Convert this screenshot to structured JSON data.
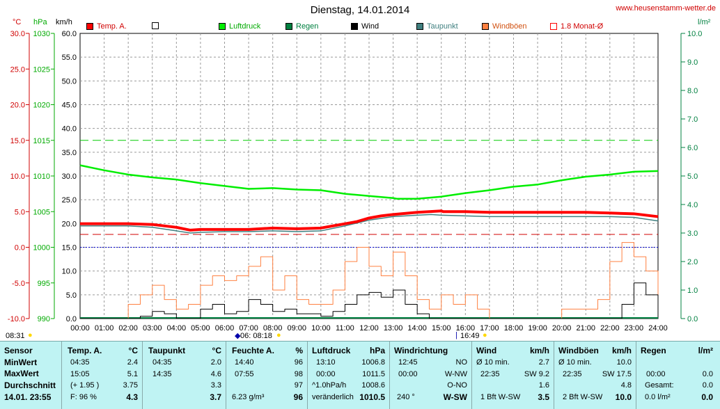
{
  "header": {
    "title": "Dienstag, 14.01.2014",
    "site": "www.heusenstamm-wetter.de",
    "unit_temp": "°C",
    "unit_press": "hPa",
    "unit_wind": "km/h",
    "unit_rain": "l/m²"
  },
  "legend": [
    {
      "label": "Temp. A.",
      "color": "#ff0000",
      "filled": true
    },
    {
      "label": "",
      "color": "#ffffff",
      "filled": false
    },
    {
      "label": "Luftdruck",
      "color": "#00ee00",
      "filled": true
    },
    {
      "label": "Regen",
      "color": "#008040",
      "filled": true
    },
    {
      "label": "Wind",
      "color": "#000000",
      "filled": true
    },
    {
      "label": "Taupunkt",
      "color": "#408080",
      "filled": true
    },
    {
      "label": "Windböen",
      "color": "#ff8040",
      "filled": true
    },
    {
      "label": "1.8 Monat-Ø",
      "color": "#ff0000",
      "filled": false
    }
  ],
  "sun": {
    "rise_label": "08:31",
    "mid_label": "06: 08:18",
    "set_label": "16:49"
  },
  "chart_data": {
    "type": "line",
    "title": "Dienstag, 14.01.2014",
    "x_ticks": [
      "00:00",
      "01:00",
      "02:00",
      "03:00",
      "04:00",
      "05:00",
      "06:00",
      "07:00",
      "08:00",
      "09:00",
      "10:00",
      "11:00",
      "12:00",
      "13:00",
      "14:00",
      "15:00",
      "16:00",
      "17:00",
      "18:00",
      "19:00",
      "20:00",
      "21:00",
      "22:00",
      "23:00",
      "24:00"
    ],
    "axes": {
      "temp": {
        "unit": "°C",
        "ticks": [
          "30.0",
          "25.0",
          "20.0",
          "15.0",
          "10.0",
          "5.0",
          "0.0",
          "-5.0",
          "-10.0"
        ],
        "range": [
          -10,
          30
        ]
      },
      "pressure": {
        "unit": "hPa",
        "ticks": [
          "1030",
          "1025",
          "1020",
          "1015",
          "1010",
          "1005",
          "1000",
          "995",
          "990"
        ],
        "range": [
          990,
          1030
        ]
      },
      "wind": {
        "unit": "km/h",
        "ticks": [
          "60.0",
          "55.0",
          "50.0",
          "45.0",
          "40.0",
          "35.0",
          "30.0",
          "25.0",
          "20.0",
          "15.0",
          "10.0",
          "5.0",
          "0.0"
        ],
        "range": [
          0,
          60
        ]
      },
      "rain": {
        "unit": "l/m²",
        "ticks": [
          "10.0",
          "9.0",
          "8.0",
          "7.0",
          "6.0",
          "5.0",
          "4.0",
          "3.0",
          "2.0",
          "1.0",
          "0.0"
        ],
        "range": [
          0,
          10
        ]
      }
    },
    "reference_lines": {
      "pressure_mean": 1015,
      "temp_month_avg": 1.8,
      "zero_temp": 0
    },
    "series": [
      {
        "name": "Temp. A.",
        "color": "#ff0000",
        "axis": "temp",
        "x": [
          0,
          1,
          2,
          3,
          4,
          4.58,
          5,
          6,
          7,
          8,
          9,
          10,
          10.5,
          11,
          11.5,
          12,
          12.5,
          13,
          14,
          15,
          15.08,
          16,
          17,
          18,
          19,
          20,
          21,
          22,
          23,
          24
        ],
        "y": [
          3.3,
          3.3,
          3.3,
          3.2,
          2.8,
          2.4,
          2.5,
          2.5,
          2.5,
          2.7,
          2.6,
          2.7,
          3.0,
          3.3,
          3.6,
          4.1,
          4.4,
          4.6,
          4.9,
          5.1,
          5.0,
          5.0,
          4.9,
          4.9,
          4.9,
          4.9,
          4.9,
          4.8,
          4.7,
          4.3
        ]
      },
      {
        "name": "Taupunkt",
        "color": "#408080",
        "axis": "temp",
        "x": [
          0,
          1,
          2,
          3,
          4,
          4.58,
          5,
          6,
          7,
          8,
          9,
          10,
          11,
          12,
          13,
          14,
          14.58,
          15,
          16,
          17,
          18,
          19,
          20,
          21,
          22,
          23,
          24
        ],
        "y": [
          3.0,
          3.0,
          3.0,
          2.8,
          2.3,
          2.0,
          2.1,
          2.2,
          2.2,
          2.3,
          2.2,
          2.3,
          3.0,
          3.8,
          4.3,
          4.5,
          4.6,
          4.5,
          4.4,
          4.3,
          4.3,
          4.3,
          4.3,
          4.3,
          4.3,
          4.2,
          3.7
        ]
      },
      {
        "name": "Luftdruck",
        "color": "#00ee00",
        "axis": "pressure",
        "x": [
          0,
          1,
          2,
          3,
          4,
          5,
          6,
          7,
          8,
          9,
          10,
          11,
          12,
          13,
          13.17,
          14,
          15,
          16,
          17,
          18,
          19,
          20,
          21,
          22,
          23,
          24
        ],
        "y": [
          1011.5,
          1010.8,
          1010.2,
          1009.8,
          1009.5,
          1009.0,
          1008.6,
          1008.2,
          1008.3,
          1008.1,
          1008.0,
          1007.5,
          1007.2,
          1006.9,
          1006.8,
          1006.8,
          1007.1,
          1007.6,
          1008.0,
          1008.5,
          1008.8,
          1009.4,
          1009.9,
          1010.2,
          1010.6,
          1010.7
        ]
      },
      {
        "name": "Wind",
        "color": "#000000",
        "axis": "wind",
        "x": [
          0,
          0.5,
          1,
          1.5,
          2,
          2.5,
          3,
          3.5,
          4,
          4.5,
          5,
          5.5,
          6,
          6.5,
          7,
          7.5,
          8,
          8.5,
          9,
          9.5,
          10,
          10.5,
          11,
          11.5,
          12,
          12.5,
          13,
          13.5,
          14,
          14.5,
          15,
          15.5,
          16,
          16.5,
          17,
          17.5,
          18,
          18.5,
          19,
          19.5,
          20,
          20.5,
          21,
          21.5,
          22,
          22.5,
          23,
          23.5,
          24
        ],
        "y": [
          0,
          0,
          0,
          0,
          0,
          0.5,
          1.5,
          1,
          0,
          0,
          2,
          3,
          1,
          1.5,
          4,
          3,
          1.5,
          2,
          1,
          1,
          0.5,
          1.5,
          3,
          5,
          5.5,
          4.5,
          6,
          3,
          1,
          0,
          0,
          0,
          0,
          0,
          0,
          0,
          0,
          0,
          0,
          0,
          0,
          0,
          0,
          0,
          0,
          3,
          7.5,
          5,
          2
        ]
      },
      {
        "name": "Windböen",
        "color": "#ff8040",
        "axis": "wind",
        "x": [
          0,
          0.5,
          1,
          1.5,
          2,
          2.5,
          3,
          3.5,
          4,
          4.5,
          5,
          5.5,
          6,
          6.5,
          7,
          7.5,
          8,
          8.5,
          9,
          9.5,
          10,
          10.5,
          11,
          11.5,
          12,
          12.5,
          13,
          13.5,
          14,
          14.5,
          15,
          15.5,
          16,
          16.5,
          17,
          17.5,
          18,
          18.5,
          19,
          19.5,
          20,
          20.5,
          21,
          21.5,
          22,
          22.5,
          23,
          23.5,
          24
        ],
        "y": [
          0,
          0,
          0,
          0,
          3,
          5,
          7,
          4,
          2,
          3,
          7,
          9,
          8,
          9,
          11,
          13,
          6,
          9,
          4,
          3,
          3,
          6,
          12,
          15,
          11,
          9,
          14,
          9,
          4,
          2,
          5,
          3,
          5,
          2,
          0,
          0,
          0,
          0,
          0,
          0,
          2,
          2,
          2,
          4,
          12,
          16,
          13,
          10,
          5
        ]
      }
    ]
  },
  "stats": {
    "sensor": {
      "h": "Sensor",
      "min": "MinWert",
      "max": "MaxWert",
      "avg": "Durchschnitt",
      "cur": "14.01. 23:55"
    },
    "temp": {
      "h": "Temp. A.",
      "u": "°C",
      "min_t": "04:35",
      "min_v": "2.4",
      "max_t": "15:05",
      "max_v": "5.1",
      "avg_t": "(+ 1.95 )",
      "avg_v": "3.75",
      "cur_t": "F: 96 %",
      "cur_v": "4.3"
    },
    "dew": {
      "h": "Taupunkt",
      "u": "°C",
      "min_t": "04:35",
      "min_v": "2.0",
      "max_t": "14:35",
      "max_v": "4.6",
      "avg_v": "3.3",
      "cur_v": "3.7"
    },
    "hum": {
      "h": "Feuchte A.",
      "u": "%",
      "min_t": "14:40",
      "min_v": "96",
      "max_t": "07:55",
      "max_v": "98",
      "avg_v": "97",
      "cur_t": "6.23 g/m³",
      "cur_v": "96"
    },
    "press": {
      "h": "Luftdruck",
      "u": "hPa",
      "min_t": "13:10",
      "min_v": "1006.8",
      "max_t": "00:00",
      "max_v": "1011.5",
      "avg_t": "^1.0hPa/h",
      "avg_v": "1008.6",
      "cur_t": "veränderlich",
      "cur_v": "1010.5"
    },
    "dir": {
      "h": "Windrichtung",
      "min_t": "12:45",
      "min_v": "NO",
      "max_t": "00:00",
      "max_v": "W-NW",
      "avg_v": "O-NO",
      "cur_t": "240 °",
      "cur_v": "W-SW"
    },
    "wind": {
      "h": "Wind",
      "u": "km/h",
      "min_t": "Ø 10 min.",
      "min_v": "2.7",
      "max_t": "22:35",
      "max_v": "SW 9.2",
      "avg_v": "1.6",
      "cur_t": "1 Bft W-SW",
      "cur_v": "3.5"
    },
    "gust": {
      "h": "Windböen",
      "u": "km/h",
      "min_t": "Ø 10 min.",
      "min_v": "10.0",
      "max_t": "22:35",
      "max_v": "SW 17.5",
      "avg_v": "4.8",
      "cur_t": "2 Bft W-SW",
      "cur_v": "10.0"
    },
    "rain": {
      "h": "Regen",
      "u": "l/m²",
      "max_t": "00:00",
      "max_v": "0.0",
      "avg_t": "Gesamt:",
      "avg_v": "0.0",
      "cur_t": "0.0 l/m²",
      "cur_v": "0.0"
    }
  }
}
